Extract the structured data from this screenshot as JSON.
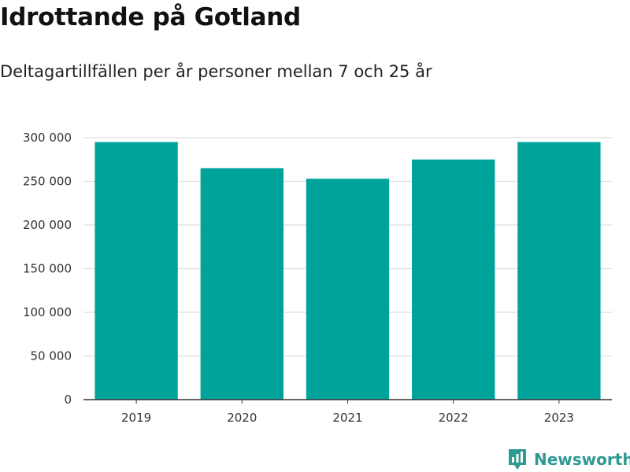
{
  "header": {
    "title": "Idrottande på Gotland",
    "subtitle": "Deltagartillfällen per år personer mellan 7 och 25 år"
  },
  "brand": {
    "name": "Newsworthy"
  },
  "colors": {
    "bar": "#00a39a",
    "grid": "#dddddd",
    "axis": "#333333",
    "brand": "#2f9a94"
  },
  "chart_data": {
    "type": "bar",
    "title": "Idrottande på Gotland",
    "subtitle": "Deltagartillfällen per år personer mellan 7 och 25 år",
    "categories": [
      "2019",
      "2020",
      "2021",
      "2022",
      "2023"
    ],
    "values": [
      295000,
      265000,
      253000,
      275000,
      295000
    ],
    "ylim": [
      0,
      300000
    ],
    "yticks": [
      0,
      50000,
      100000,
      150000,
      200000,
      250000,
      300000
    ],
    "ytick_labels": [
      "0",
      "50 000",
      "100 000",
      "150 000",
      "200 000",
      "250 000",
      "300 000"
    ],
    "xlabel": "",
    "ylabel": "",
    "grid": true,
    "legend": "none"
  }
}
